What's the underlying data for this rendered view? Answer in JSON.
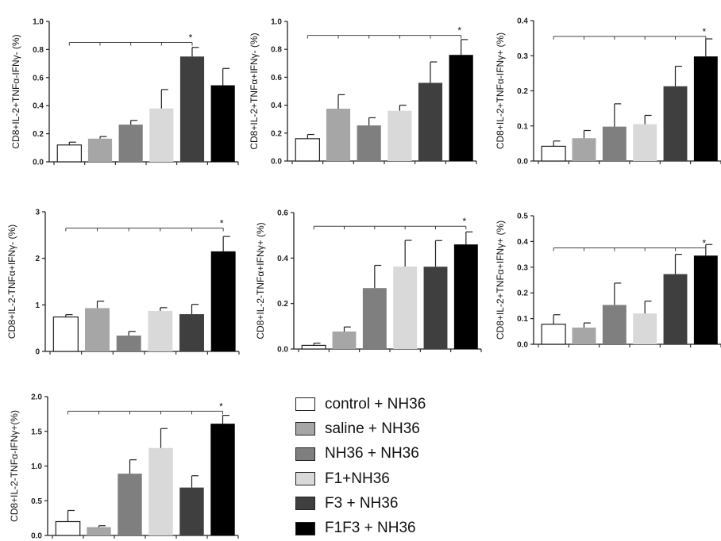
{
  "legend": {
    "items": [
      {
        "label": "control + NH36",
        "color": "#ffffff"
      },
      {
        "label": "saline + NH36",
        "color": "#a6a6a6"
      },
      {
        "label": "NH36 + NH36",
        "color": "#7f7f7f"
      },
      {
        "label": "F1+NH36",
        "color": "#d9d9d9"
      },
      {
        "label": "F3 + NH36",
        "color": "#3f3f3f"
      },
      {
        "label": "F1F3 + NH36",
        "color": "#000000"
      }
    ]
  },
  "chart_data": [
    {
      "type": "bar",
      "ylabel": "CD8+IL-2+TNFα-IFNγ- (%)",
      "ylim": [
        0,
        1.0
      ],
      "yticks": [
        "0.0",
        "0.2",
        "0.4",
        "0.6",
        "0.8",
        "1.0"
      ],
      "values": [
        0.12,
        0.165,
        0.265,
        0.38,
        0.75,
        0.545
      ],
      "errors": [
        0.02,
        0.015,
        0.03,
        0.135,
        0.065,
        0.12
      ],
      "significance": {
        "label": "*",
        "from": 0,
        "to": 4,
        "y": 0.85
      }
    },
    {
      "type": "bar",
      "ylabel": "CD8+IL-2+TNFα+IFNγ- (%)",
      "ylim": [
        0,
        1.0
      ],
      "yticks": [
        "0.0",
        "0.2",
        "0.4",
        "0.6",
        "0.8",
        "1.0"
      ],
      "values": [
        0.16,
        0.375,
        0.255,
        0.36,
        0.56,
        0.76
      ],
      "errors": [
        0.03,
        0.1,
        0.055,
        0.04,
        0.15,
        0.11
      ],
      "significance": {
        "label": "*",
        "from": 0,
        "to": 5,
        "y": 0.9
      }
    },
    {
      "type": "bar",
      "ylabel": "CD8+IL-2+TNFα-IFNγ+ (%)",
      "ylim": [
        0,
        0.4
      ],
      "yticks": [
        "0.0",
        "0.1",
        "0.2",
        "0.3",
        "0.4"
      ],
      "values": [
        0.042,
        0.065,
        0.098,
        0.105,
        0.213,
        0.298
      ],
      "errors": [
        0.015,
        0.022,
        0.065,
        0.025,
        0.057,
        0.05
      ],
      "significance": {
        "label": "*",
        "from": 0,
        "to": 5,
        "y": 0.355
      }
    },
    {
      "type": "bar",
      "ylabel": "CD8+IL-2-TNFα+IFNγ- (%)",
      "ylim": [
        0,
        3
      ],
      "yticks": [
        "0",
        "1",
        "2",
        "3"
      ],
      "values": [
        0.74,
        0.93,
        0.34,
        0.87,
        0.8,
        2.15
      ],
      "errors": [
        0.05,
        0.15,
        0.09,
        0.07,
        0.21,
        0.32
      ],
      "significance": {
        "label": "*",
        "from": 0,
        "to": 5,
        "y": 2.65
      }
    },
    {
      "type": "bar",
      "ylabel": "CD8+IL-2-TNFα+IFNγ+ (%)",
      "ylim": [
        0,
        0.6
      ],
      "yticks": [
        "0.0",
        "0.2",
        "0.4",
        "0.6"
      ],
      "values": [
        0.016,
        0.077,
        0.268,
        0.363,
        0.362,
        0.46
      ],
      "errors": [
        0.01,
        0.02,
        0.1,
        0.115,
        0.115,
        0.055
      ],
      "significance": {
        "label": "*",
        "from": 0,
        "to": 5,
        "y": 0.54
      }
    },
    {
      "type": "bar",
      "ylabel": "CD8+IL-2+TNFα+IFNγ+ (%)",
      "ylim": [
        0,
        0.5
      ],
      "yticks": [
        "0.0",
        "0.1",
        "0.2",
        "0.3",
        "0.4",
        "0.5"
      ],
      "values": [
        0.078,
        0.065,
        0.153,
        0.12,
        0.273,
        0.345
      ],
      "errors": [
        0.037,
        0.018,
        0.085,
        0.048,
        0.077,
        0.043
      ],
      "significance": {
        "label": "*",
        "from": 0,
        "to": 5,
        "y": 0.375
      }
    },
    {
      "type": "bar",
      "ylabel": "CD8+IL-2-TNFα-IFNγ+(%)",
      "ylim": [
        0,
        2.0
      ],
      "yticks": [
        "0.0",
        "0.5",
        "1.0",
        "1.5",
        "2.0"
      ],
      "values": [
        0.2,
        0.12,
        0.89,
        1.26,
        0.69,
        1.61
      ],
      "errors": [
        0.16,
        0.02,
        0.2,
        0.28,
        0.17,
        0.12
      ],
      "significance": {
        "label": "*",
        "from": 0,
        "to": 5,
        "y": 1.79
      }
    }
  ]
}
